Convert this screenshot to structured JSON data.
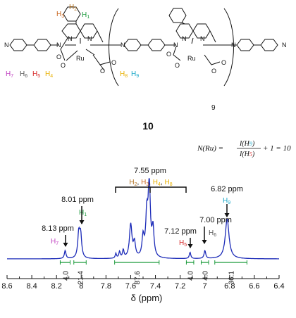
{
  "structure": {
    "compound_number": "10",
    "repeat_count": "9",
    "metal_label": "Ru",
    "proton_labels": [
      {
        "id": "H1",
        "text": "H",
        "sub": "1",
        "color": "#1a9a3a"
      },
      {
        "id": "H2",
        "text": "H",
        "sub": "2",
        "color": "#b07020"
      },
      {
        "id": "H3",
        "text": "H",
        "sub": "3",
        "color": "#c8641e"
      },
      {
        "id": "H4",
        "text": "H",
        "sub": "4",
        "color": "#e8b000"
      },
      {
        "id": "H5",
        "text": "H",
        "sub": "5",
        "color": "#d62828"
      },
      {
        "id": "H6",
        "text": "H",
        "sub": "6",
        "color": "#555555"
      },
      {
        "id": "H7",
        "text": "H",
        "sub": "7",
        "color": "#c040c0"
      },
      {
        "id": "H8",
        "text": "H",
        "sub": "8",
        "color": "#e8b000"
      },
      {
        "id": "H9",
        "text": "H",
        "sub": "9",
        "color": "#19a7c8"
      }
    ]
  },
  "formula": {
    "lhs": "N(Ru) =",
    "numerator": "I(H",
    "numerator_sub": "9",
    "denominator": "I(H",
    "denominator_sub": "5",
    "rhs": "+ 1 = 10"
  },
  "chart_data": {
    "type": "line",
    "xlabel": "δ (ppm)",
    "xlim": [
      8.6,
      6.4
    ],
    "x_reversed": true,
    "x_ticks": [
      "8.6",
      "8.4",
      "8.2",
      "8",
      "7.8",
      "7.6",
      "7.4",
      "7.2",
      "7",
      "6.8",
      "6.6",
      "6.4"
    ],
    "line_color": "#1c2bb8",
    "peaks": [
      {
        "ppm": 8.13,
        "label": "8.13 ppm",
        "proton": "H7",
        "proton_color": "#c040c0",
        "height": 0.1
      },
      {
        "ppm": 8.01,
        "label": "8.01 ppm",
        "proton": "H1",
        "proton_color": "#1a9a3a",
        "height": 0.36
      },
      {
        "ppm": 7.55,
        "label": "7.55 ppm",
        "proton": "H2, H3, H4, H8",
        "height": 1.0
      },
      {
        "ppm": 7.12,
        "label": "7.12 ppm",
        "proton": "H5",
        "proton_color": "#d62828",
        "height": 0.08
      },
      {
        "ppm": 7.0,
        "label": "7.00 ppm",
        "proton": "H6",
        "proton_color": "#555555",
        "height": 0.1
      },
      {
        "ppm": 6.82,
        "label": "6.82 ppm",
        "proton": "H9",
        "proton_color": "#19a7c8",
        "height": 0.5
      }
    ],
    "integrals": [
      {
        "from": 8.17,
        "to": 8.09,
        "value": "4.0"
      },
      {
        "from": 8.06,
        "to": 7.96,
        "value": "21.4"
      },
      {
        "from": 7.73,
        "to": 7.37,
        "value": "87.6"
      },
      {
        "from": 7.15,
        "to": 7.09,
        "value": "4.0"
      },
      {
        "from": 7.03,
        "to": 6.97,
        "value": "4.0"
      },
      {
        "from": 6.92,
        "to": 6.66,
        "value": "36.1"
      }
    ]
  }
}
